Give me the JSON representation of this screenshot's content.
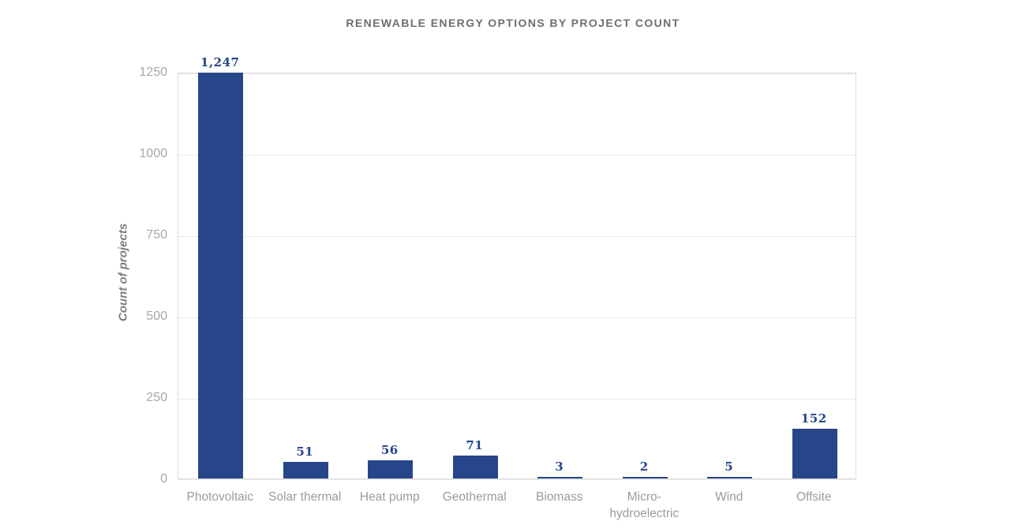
{
  "chart_data": {
    "type": "bar",
    "title": "RENEWABLE ENERGY OPTIONS BY PROJECT COUNT",
    "xlabel": "",
    "ylabel": "Count of projects",
    "categories": [
      [
        "Photovoltaic"
      ],
      [
        "Solar thermal"
      ],
      [
        "Heat pump"
      ],
      [
        "Geothermal"
      ],
      [
        "Biomass"
      ],
      [
        "Micro-",
        "hydroelectric"
      ],
      [
        "Wind"
      ],
      [
        "Offsite"
      ]
    ],
    "values": [
      1247,
      51,
      56,
      71,
      3,
      2,
      5,
      152
    ],
    "value_labels": [
      "1,247",
      "51",
      "56",
      "71",
      "3",
      "2",
      "5",
      "152"
    ],
    "yticks": [
      0,
      250,
      500,
      750,
      1000,
      1250
    ],
    "ytick_labels": [
      "0",
      "250",
      "500",
      "750",
      "1000",
      "1250"
    ],
    "ylim": [
      0,
      1250
    ],
    "grid": "horizontal",
    "legend": "none",
    "colors": {
      "bar": "#27468a",
      "value_label": "#24458a",
      "title": "#6e6e6e",
      "axis_tick_text": "#a7a7a7",
      "x_tick_text": "#9b9b9b",
      "y_axis_label_text": "#7d7d7d",
      "gridline": "#e9e9e9",
      "plot_border": "#dcdcdc",
      "background": "#ffffff"
    }
  }
}
